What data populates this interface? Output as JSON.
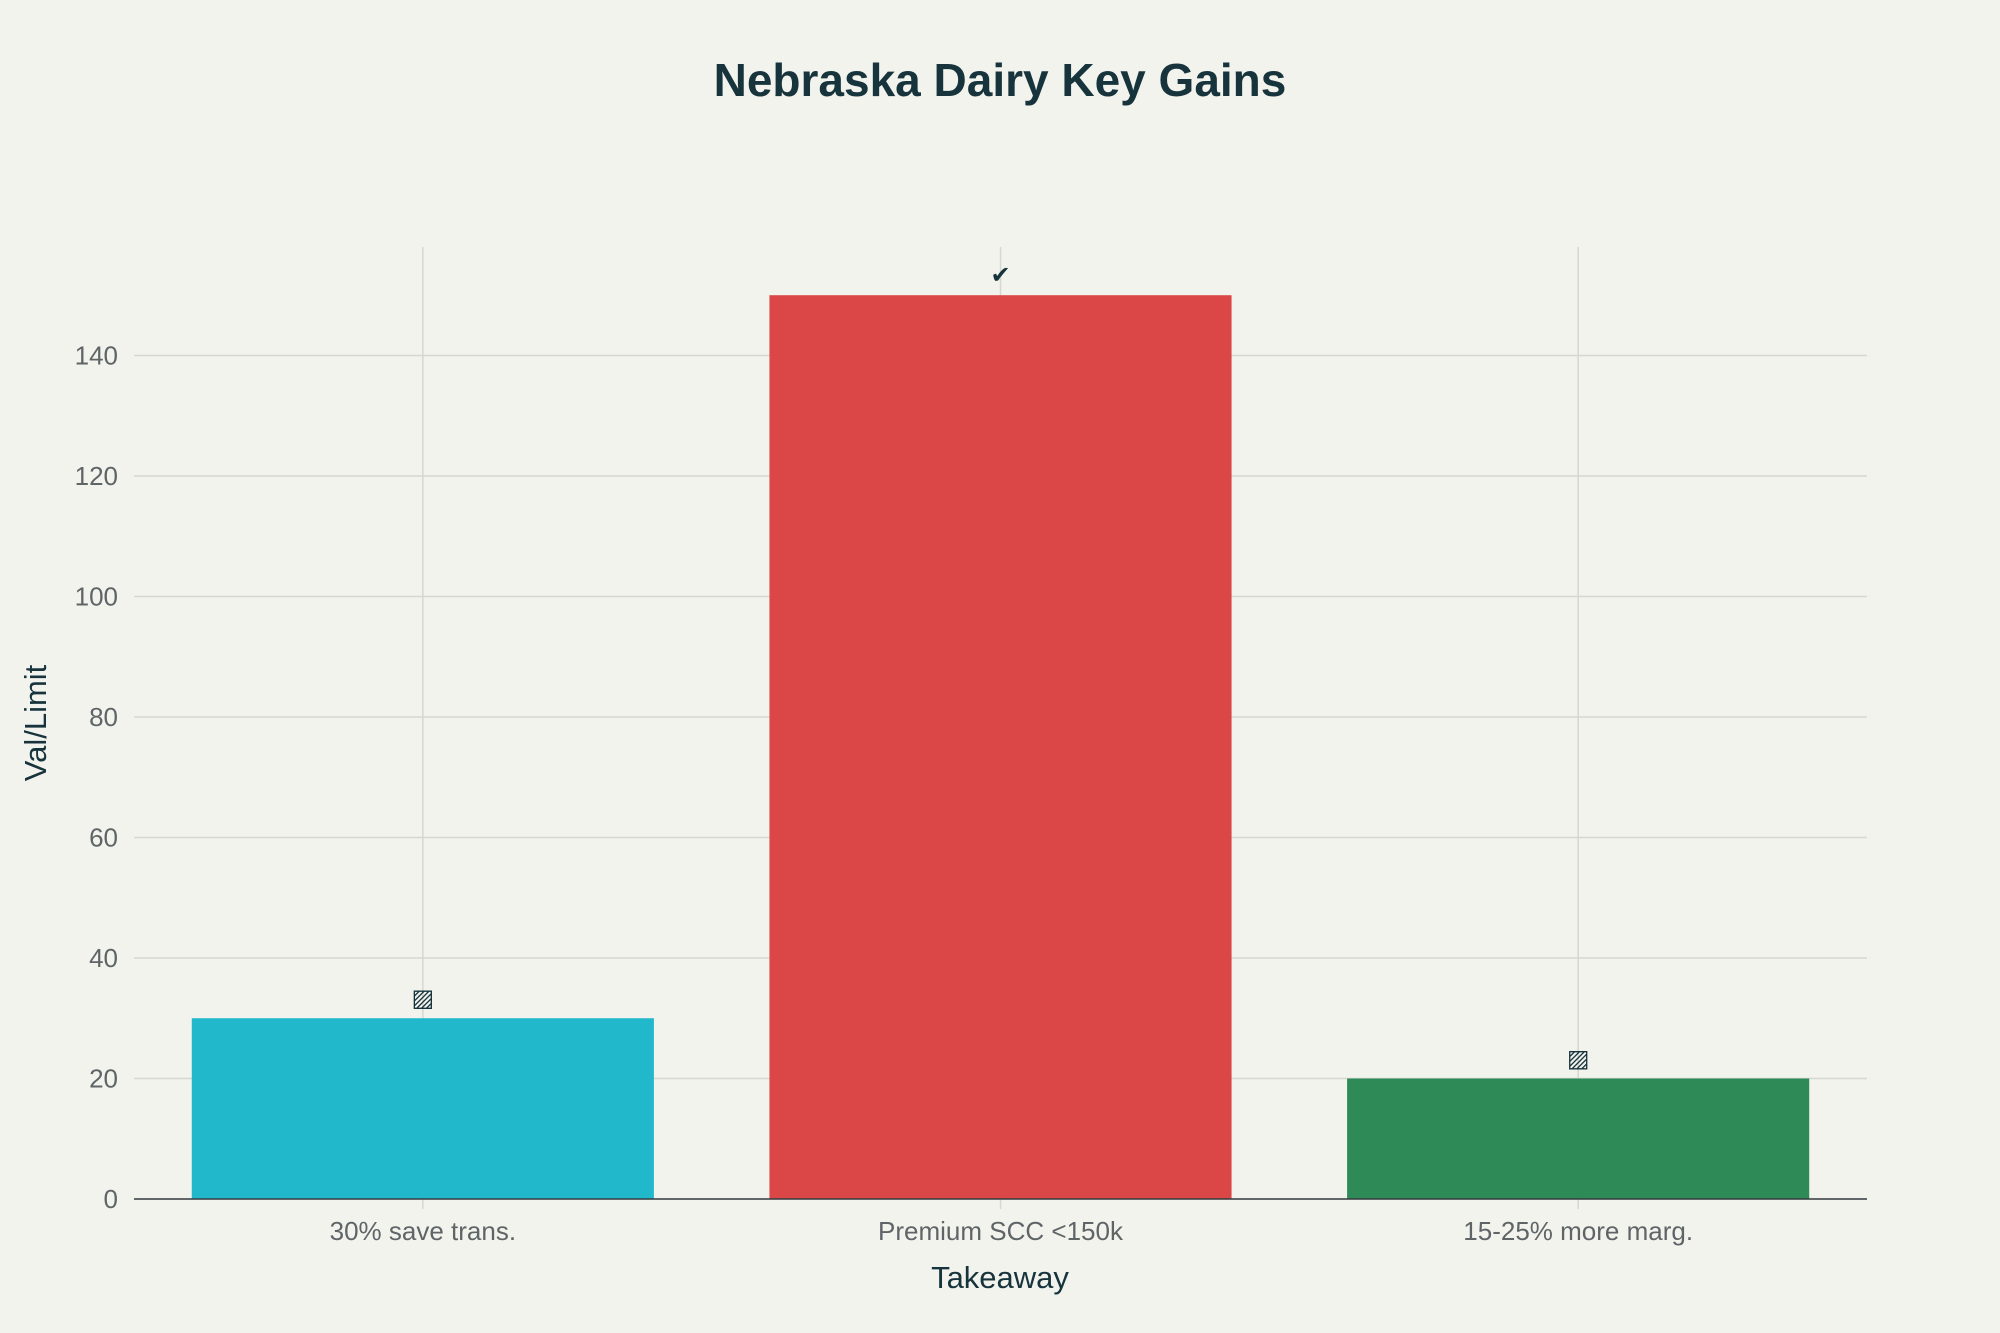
{
  "chart_data": {
    "type": "bar",
    "title": "Nebraska Dairy Key Gains",
    "xlabel": "Takeaway",
    "ylabel": "Val/Limit",
    "categories": [
      "30% save trans.",
      "Premium SCC <150k",
      "15-25% more marg."
    ],
    "values": [
      30,
      150,
      20
    ],
    "bar_labels": [
      "▨",
      "✔",
      "▨"
    ],
    "colors": [
      "#21b8cc",
      "#db4747",
      "#2e8b57"
    ],
    "ylim": [
      0,
      158
    ],
    "yticks": [
      0,
      20,
      40,
      60,
      80,
      100,
      120,
      140
    ],
    "grid": true,
    "legend": "none"
  }
}
